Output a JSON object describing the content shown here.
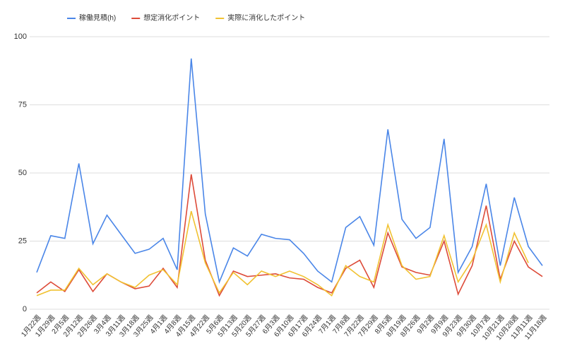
{
  "chart_data": {
    "type": "line",
    "categories": [
      "1月22週",
      "1月29週",
      "2月5週",
      "2月12週",
      "2月26週",
      "3月4週",
      "3月11週",
      "3月18週",
      "3月25週",
      "4月1週",
      "4月8週",
      "4月15週",
      "4月22週",
      "5月6週",
      "5月13週",
      "5月20週",
      "5月27週",
      "6月3週",
      "6月10週",
      "6月17週",
      "6月24週",
      "7月1週",
      "7月8週",
      "7月22週",
      "7月29週",
      "8月5週",
      "8月19週",
      "8月26週",
      "9月2週",
      "9月9週",
      "9月23週",
      "9月30週",
      "10月7週",
      "10月21週",
      "10月28週",
      "11月11週",
      "11月18週"
    ],
    "series": [
      {
        "name": "稼働見積(h)",
        "color": "#4a86e8",
        "values": [
          13.5,
          27,
          26,
          53.5,
          24,
          34.5,
          27.5,
          20.5,
          22,
          26,
          14.5,
          92,
          35,
          10,
          22.5,
          19.5,
          27.5,
          26,
          25.5,
          20.5,
          14,
          10,
          30,
          34,
          23.5,
          66,
          33,
          26,
          30,
          62.5,
          13.5,
          23,
          46,
          16,
          41,
          23,
          16
        ]
      },
      {
        "name": "想定消化ポイント",
        "color": "#dd4b39",
        "values": [
          6,
          10,
          6.5,
          14.5,
          6.5,
          13,
          10,
          7.5,
          8.5,
          15,
          8,
          49.5,
          18,
          5,
          14,
          12,
          12.5,
          13,
          11.5,
          11,
          8,
          6,
          15,
          18,
          8,
          28,
          15.5,
          13.5,
          12.5,
          25,
          5.5,
          16,
          38,
          11,
          25,
          15.5,
          12
        ]
      },
      {
        "name": "実際に消化したポイント",
        "color": "#f1c232",
        "values": [
          5,
          7,
          7,
          15,
          9,
          13,
          10,
          8,
          12.5,
          14.5,
          9,
          36,
          17,
          6,
          13.5,
          9,
          14,
          12,
          14,
          12,
          9,
          5,
          16,
          12,
          10,
          31,
          16,
          11,
          12,
          27,
          10,
          18,
          31,
          10,
          28,
          17,
          null
        ]
      }
    ],
    "ylim": [
      0,
      100
    ],
    "yticks": [
      0,
      25,
      50,
      75,
      100
    ],
    "grid": true,
    "legend": "top"
  }
}
